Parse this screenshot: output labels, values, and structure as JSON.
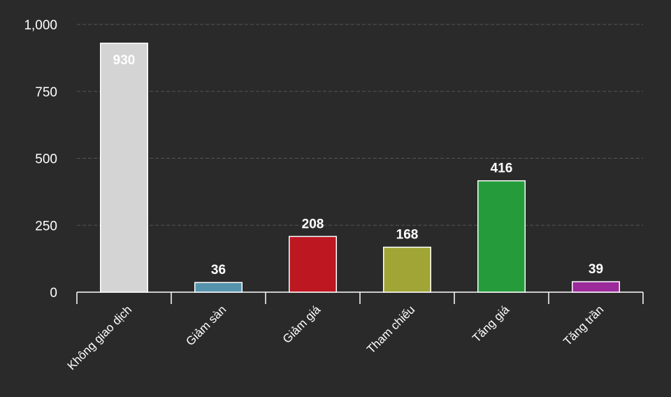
{
  "chart_data": {
    "type": "bar",
    "categories": [
      "Không giao dịch",
      "Giảm sàn",
      "Giảm giá",
      "Tham chiếu",
      "Tăng giá",
      "Tăng trần"
    ],
    "values": [
      930,
      36,
      208,
      168,
      416,
      39
    ],
    "colors": [
      "#d4d4d4",
      "#5593ad",
      "#bd1722",
      "#a0a535",
      "#259b3c",
      "#9b2a9b"
    ],
    "ylim": [
      0,
      1000
    ],
    "yticks": [
      0,
      250,
      500,
      750,
      {
        "value": 1000,
        "label": "1,000"
      }
    ],
    "grid": true
  }
}
